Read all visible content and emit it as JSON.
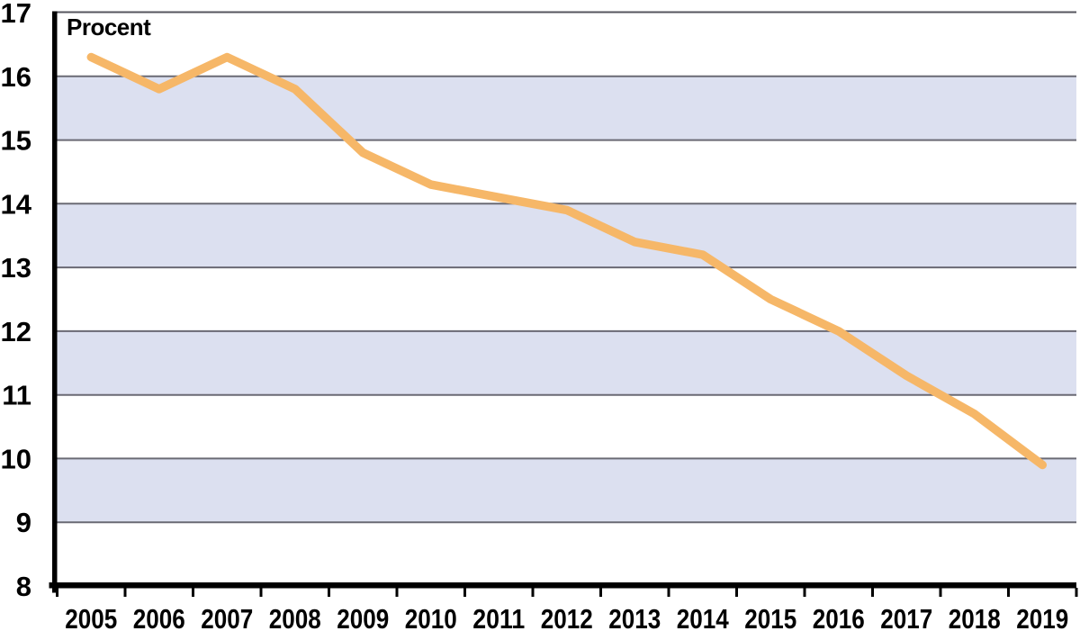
{
  "chart_data": {
    "type": "line",
    "title": "",
    "ylabel": "Procent",
    "xlabel": "",
    "categories": [
      "2005",
      "2006",
      "2007",
      "2008",
      "2009",
      "2010",
      "2011",
      "2012",
      "2013",
      "2014",
      "2015",
      "2016",
      "2017",
      "2018",
      "2019"
    ],
    "series": [
      {
        "name": "Procent",
        "values": [
          16.3,
          15.8,
          16.3,
          15.8,
          14.8,
          14.3,
          14.1,
          13.9,
          13.4,
          13.2,
          12.5,
          12.0,
          11.3,
          10.7,
          9.9
        ]
      }
    ],
    "ylim": [
      8,
      17
    ],
    "yticks": [
      8,
      9,
      10,
      11,
      12,
      13,
      14,
      15,
      16,
      17
    ],
    "grid": "horizontal",
    "plot_bands": [
      [
        9,
        10
      ],
      [
        11,
        12
      ],
      [
        13,
        14
      ],
      [
        15,
        16
      ]
    ],
    "legend_position": "none"
  },
  "style": {
    "line_color": "#f6b768",
    "band_color": "#dce0f0",
    "grid_color": "#6a6a74",
    "top_border_color": "#55555e",
    "axis_color": "#000000",
    "text_color": "#000000",
    "background_color": "#ffffff"
  }
}
